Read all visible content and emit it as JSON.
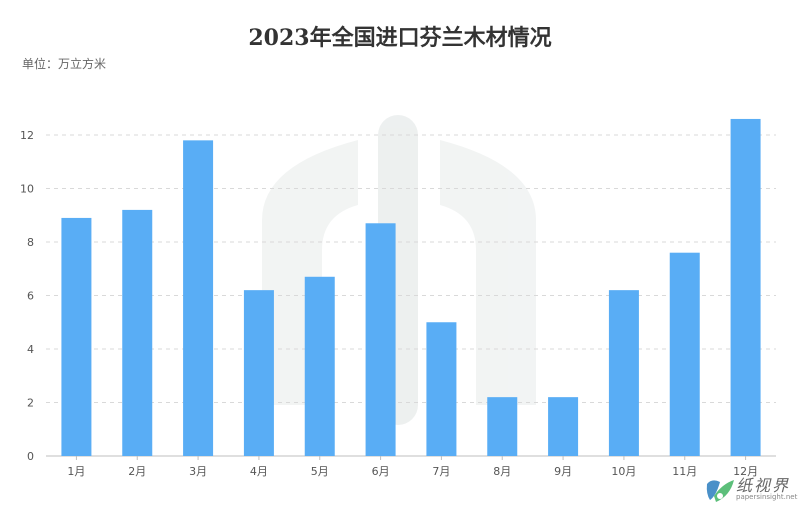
{
  "chart_data": {
    "type": "bar",
    "title": "2023年全国进口芬兰木材情况",
    "unit_label": "单位：万立方米",
    "categories": [
      "1月",
      "2月",
      "3月",
      "4月",
      "5月",
      "6月",
      "7月",
      "8月",
      "9月",
      "10月",
      "11月",
      "12月"
    ],
    "values": [
      8.9,
      9.2,
      11.8,
      6.2,
      6.7,
      8.7,
      5.0,
      2.2,
      2.2,
      6.2,
      7.6,
      12.6
    ],
    "ylim": [
      0,
      12
    ],
    "yticks": [
      0,
      2,
      4,
      6,
      8,
      10,
      12
    ],
    "grid": true,
    "bar_color": "#59adf5"
  },
  "brand": {
    "name": "纸视界",
    "url": "papersinsight.net"
  }
}
